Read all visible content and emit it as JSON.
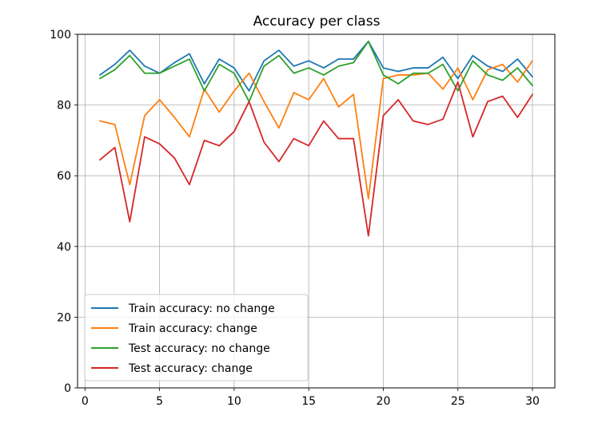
{
  "chart_data": {
    "type": "line",
    "title": "Accuracy per class",
    "xlabel": "",
    "ylabel": "",
    "xlim": [
      -0.5,
      31.5
    ],
    "ylim": [
      0,
      100
    ],
    "xticks": [
      0,
      5,
      10,
      15,
      20,
      25,
      30
    ],
    "yticks": [
      0,
      20,
      40,
      60,
      80,
      100
    ],
    "grid": true,
    "legend_position": "lower-left",
    "x": [
      1,
      2,
      3,
      4,
      5,
      6,
      7,
      8,
      9,
      10,
      11,
      12,
      13,
      14,
      15,
      16,
      17,
      18,
      19,
      20,
      21,
      22,
      23,
      24,
      25,
      26,
      27,
      28,
      29,
      30
    ],
    "series": [
      {
        "name": "Train accuracy: no change",
        "color": "#1f77b4",
        "values": [
          88.5,
          91.5,
          95.5,
          91,
          89,
          92,
          94.5,
          86,
          93,
          90.5,
          84,
          92.5,
          95.5,
          91,
          92.5,
          90.5,
          93,
          93,
          98,
          90.5,
          89.5,
          90.5,
          90.5,
          93.5,
          87.5,
          94,
          91,
          89.5,
          93,
          88
        ]
      },
      {
        "name": "Train accuracy: change",
        "color": "#ff7f0e",
        "values": [
          75.5,
          74.5,
          57.5,
          77,
          81.5,
          76.5,
          71,
          84.5,
          78,
          84,
          89,
          81,
          73.5,
          83.5,
          81.5,
          87.5,
          79.5,
          83,
          53.5,
          87.5,
          88.5,
          88.5,
          89,
          84.5,
          90.5,
          81.5,
          90,
          91.5,
          86.5,
          92.5
        ]
      },
      {
        "name": "Test accuracy: no change",
        "color": "#2ca02c",
        "values": [
          87.5,
          90,
          94,
          89,
          89,
          91,
          93,
          84,
          91.5,
          89,
          81,
          91,
          94,
          89,
          90.5,
          88.5,
          91,
          92,
          98,
          88.5,
          86,
          89,
          89,
          91.5,
          84,
          92.5,
          88.5,
          87,
          90.5,
          85.5
        ]
      },
      {
        "name": "Test accuracy: change",
        "color": "#d62728",
        "values": [
          64.5,
          68,
          47,
          71,
          69,
          65,
          57.5,
          70,
          68.5,
          72.5,
          81,
          69.5,
          64,
          70.5,
          68.5,
          75.5,
          70.5,
          70.5,
          43,
          77,
          81.5,
          75.5,
          74.5,
          76,
          86.5,
          71,
          81,
          82.5,
          76.5,
          83
        ]
      }
    ]
  }
}
